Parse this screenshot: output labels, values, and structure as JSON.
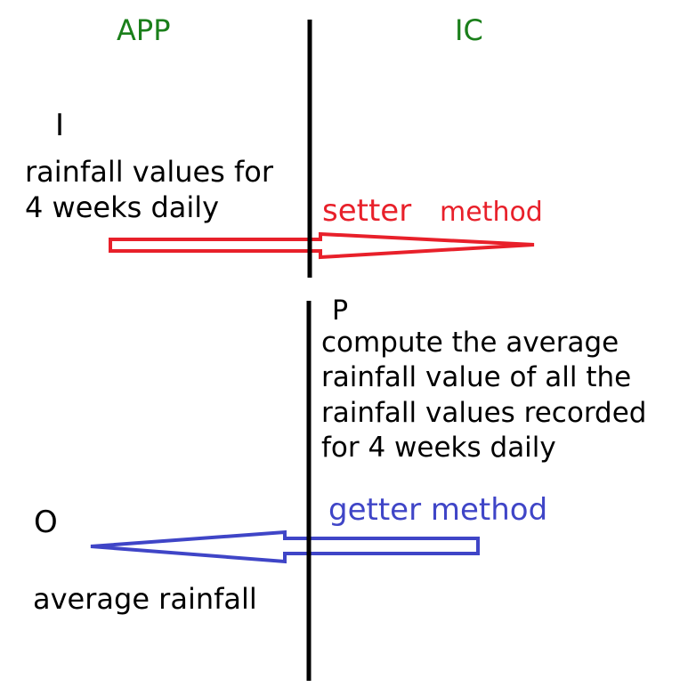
{
  "columns": {
    "app": "APP",
    "ic": "IC"
  },
  "input": {
    "marker": "I",
    "line1": "rainfall values for",
    "line2": "4 weeks daily"
  },
  "setter": {
    "word1": "setter",
    "word2": "method"
  },
  "process": {
    "marker": "P",
    "line1": "compute the average",
    "line2": "rainfall value of all the",
    "line3": "rainfall values recorded",
    "line4": "for 4 weeks daily"
  },
  "getter": {
    "label": "getter method"
  },
  "output": {
    "marker": "O",
    "label": "average rainfall"
  },
  "colors": {
    "column_heading": "#1a7f1a",
    "setter_arrow": "#e8202a",
    "getter_arrow": "#3f45c7",
    "divider": "#000000"
  }
}
